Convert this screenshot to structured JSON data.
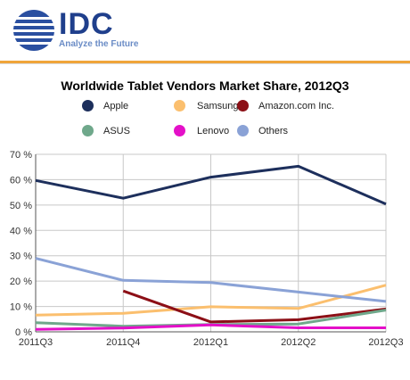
{
  "header": {
    "logo_text": "IDC",
    "tagline": "Analyze the Future"
  },
  "chart_data": {
    "type": "line",
    "title": "Worldwide Tablet Vendors Market Share, 2012Q3",
    "xlabel": "",
    "ylabel": "",
    "categories": [
      "2011Q3",
      "2011Q4",
      "2012Q1",
      "2012Q2",
      "2012Q3"
    ],
    "ylim": [
      0,
      70
    ],
    "yticks": [
      0,
      10,
      20,
      30,
      40,
      50,
      60,
      70
    ],
    "ytick_labels": [
      "0 %",
      "10 %",
      "20 %",
      "30 %",
      "40 %",
      "50 %",
      "60 %",
      "70 %"
    ],
    "grid": true,
    "legend_placement": "top",
    "series": [
      {
        "name": "Apple",
        "color": "#1d2f5c",
        "values": [
          59.7,
          52.7,
          61.0,
          65.3,
          50.4
        ]
      },
      {
        "name": "Samsung",
        "color": "#fbbf6e",
        "values": [
          6.6,
          7.3,
          9.9,
          9.2,
          18.4
        ]
      },
      {
        "name": "Amazon.com Inc.",
        "color": "#8c0f16",
        "values": [
          null,
          16.1,
          3.9,
          4.8,
          9.0
        ]
      },
      {
        "name": "ASUS",
        "color": "#6fa88b",
        "values": [
          3.6,
          2.2,
          2.9,
          3.1,
          8.6
        ]
      },
      {
        "name": "Lenovo",
        "color": "#e410c8",
        "values": [
          1.0,
          1.5,
          2.7,
          1.6,
          1.6
        ]
      },
      {
        "name": "Others",
        "color": "#8aa2d6",
        "values": [
          29.0,
          20.3,
          19.4,
          15.7,
          12.0
        ]
      }
    ]
  }
}
